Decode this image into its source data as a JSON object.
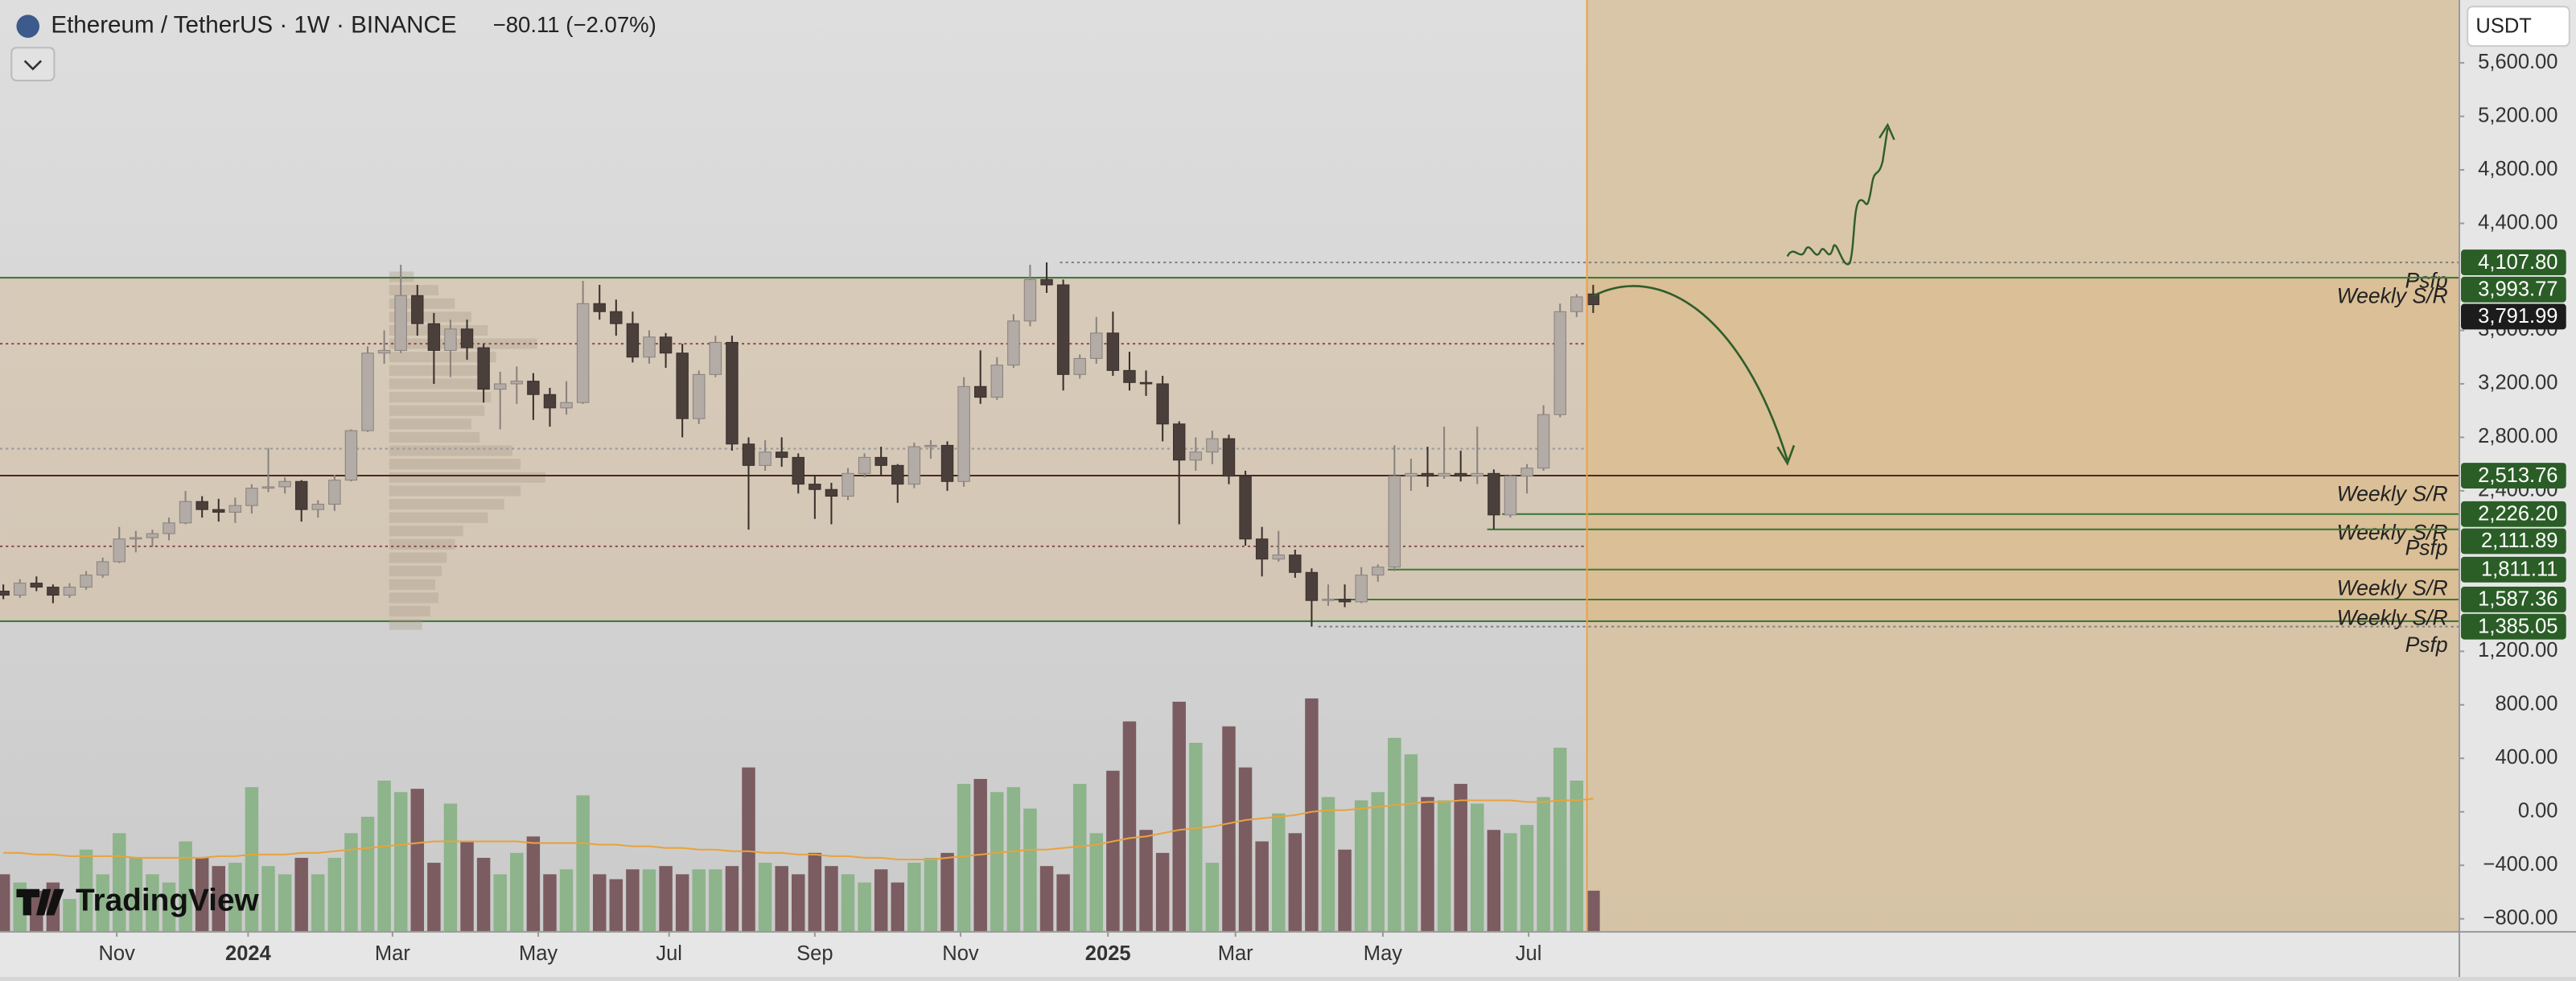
{
  "chart_data": {
    "type": "candlestick",
    "title": "Ethereum / TetherUS · 1W · BINANCE",
    "change": "−80.11 (−2.07%)",
    "currency_button": "USDT",
    "logo": "TradingView",
    "xlim": [
      -0.2,
      148.3
    ],
    "ylim": [
      -897,
      6070
    ],
    "xticks": [
      {
        "value": 6.85,
        "label": "Nov"
      },
      {
        "value": 14.78,
        "label": "2024"
      },
      {
        "value": 23.5,
        "label": "Mar"
      },
      {
        "value": 32.3,
        "label": "May"
      },
      {
        "value": 40.2,
        "label": "Jul"
      },
      {
        "value": 49.0,
        "label": "Sep"
      },
      {
        "value": 57.8,
        "label": "Nov"
      },
      {
        "value": 66.7,
        "label": "2025"
      },
      {
        "value": 74.4,
        "label": "Mar"
      },
      {
        "value": 83.3,
        "label": "May"
      },
      {
        "value": 92.1,
        "label": "Jul"
      }
    ],
    "yticks": [
      {
        "value": 5600,
        "label": "5,600.00"
      },
      {
        "value": 5200,
        "label": "5,200.00"
      },
      {
        "value": 4800,
        "label": "4,800.00"
      },
      {
        "value": 4400,
        "label": "4,400.00"
      },
      {
        "value": 3600,
        "label": "3,600.00"
      },
      {
        "value": 3200,
        "label": "3,200.00"
      },
      {
        "value": 2800,
        "label": "2,800.00"
      },
      {
        "value": 2400,
        "label": "2,400.00"
      },
      {
        "value": 1200,
        "label": "1,200.00"
      },
      {
        "value": 800,
        "label": "800.00"
      },
      {
        "value": 400,
        "label": "400.00"
      },
      {
        "value": 0,
        "label": "0.00"
      },
      {
        "value": -400,
        "label": "−400.00"
      },
      {
        "value": -800,
        "label": "−800.00"
      }
    ],
    "up_color": "#b3aba5",
    "down_color": "#4a3f3b",
    "ohlc": [
      [
        1650,
        1700,
        1590,
        1620
      ],
      [
        1620,
        1740,
        1600,
        1710
      ],
      [
        1710,
        1760,
        1650,
        1680
      ],
      [
        1680,
        1700,
        1560,
        1620
      ],
      [
        1620,
        1710,
        1600,
        1680
      ],
      [
        1680,
        1800,
        1660,
        1770
      ],
      [
        1770,
        1900,
        1750,
        1870
      ],
      [
        1870,
        2130,
        1860,
        2040
      ],
      [
        2040,
        2100,
        1940,
        2050
      ],
      [
        2050,
        2110,
        1980,
        2080
      ],
      [
        2080,
        2200,
        2030,
        2160
      ],
      [
        2160,
        2400,
        2150,
        2320
      ],
      [
        2320,
        2360,
        2200,
        2260
      ],
      [
        2260,
        2340,
        2170,
        2240
      ],
      [
        2240,
        2350,
        2160,
        2290
      ],
      [
        2290,
        2450,
        2230,
        2420
      ],
      [
        2420,
        2720,
        2390,
        2430
      ],
      [
        2430,
        2500,
        2380,
        2470
      ],
      [
        2470,
        2480,
        2170,
        2260
      ],
      [
        2260,
        2330,
        2200,
        2300
      ],
      [
        2300,
        2520,
        2250,
        2480
      ],
      [
        2480,
        2860,
        2470,
        2850
      ],
      [
        2850,
        3480,
        2840,
        3430
      ],
      [
        3430,
        3600,
        3350,
        3450
      ],
      [
        3450,
        4090,
        3430,
        3860
      ],
      [
        3860,
        3940,
        3560,
        3650
      ],
      [
        3650,
        3730,
        3200,
        3450
      ],
      [
        3450,
        3680,
        3250,
        3610
      ],
      [
        3610,
        3680,
        3380,
        3470
      ],
      [
        3470,
        3500,
        3060,
        3160
      ],
      [
        3160,
        3290,
        2860,
        3200
      ],
      [
        3200,
        3330,
        3050,
        3220
      ],
      [
        3220,
        3280,
        2930,
        3120
      ],
      [
        3120,
        3170,
        2880,
        3020
      ],
      [
        3020,
        3220,
        2970,
        3060
      ],
      [
        3060,
        3970,
        3050,
        3800
      ],
      [
        3800,
        3940,
        3680,
        3740
      ],
      [
        3740,
        3830,
        3560,
        3650
      ],
      [
        3650,
        3740,
        3360,
        3400
      ],
      [
        3400,
        3600,
        3350,
        3550
      ],
      [
        3550,
        3580,
        3320,
        3430
      ],
      [
        3430,
        3500,
        2800,
        2940
      ],
      [
        2940,
        3300,
        2900,
        3270
      ],
      [
        3270,
        3560,
        3250,
        3510
      ],
      [
        3510,
        3560,
        2700,
        2750
      ],
      [
        2750,
        2800,
        2110,
        2590
      ],
      [
        2590,
        2780,
        2550,
        2690
      ],
      [
        2690,
        2800,
        2580,
        2650
      ],
      [
        2650,
        2680,
        2380,
        2450
      ],
      [
        2450,
        2520,
        2190,
        2410
      ],
      [
        2410,
        2460,
        2150,
        2360
      ],
      [
        2360,
        2570,
        2330,
        2530
      ],
      [
        2530,
        2680,
        2500,
        2650
      ],
      [
        2650,
        2730,
        2520,
        2590
      ],
      [
        2590,
        2600,
        2310,
        2450
      ],
      [
        2450,
        2760,
        2420,
        2730
      ],
      [
        2730,
        2780,
        2640,
        2740
      ],
      [
        2740,
        2770,
        2400,
        2470
      ],
      [
        2470,
        3250,
        2430,
        3180
      ],
      [
        3180,
        3450,
        3050,
        3100
      ],
      [
        3100,
        3400,
        3080,
        3340
      ],
      [
        3340,
        3720,
        3320,
        3670
      ],
      [
        3670,
        4090,
        3630,
        3980
      ],
      [
        3980,
        4107.8,
        3880,
        3940
      ],
      [
        3940,
        3980,
        3150,
        3270
      ],
      [
        3270,
        3420,
        3240,
        3390
      ],
      [
        3390,
        3700,
        3350,
        3580
      ],
      [
        3580,
        3740,
        3260,
        3300
      ],
      [
        3300,
        3440,
        3150,
        3210
      ],
      [
        3210,
        3300,
        3110,
        3200
      ],
      [
        3200,
        3260,
        2770,
        2900
      ],
      [
        2900,
        2920,
        2150,
        2630
      ],
      [
        2630,
        2800,
        2550,
        2690
      ],
      [
        2690,
        2850,
        2600,
        2790
      ],
      [
        2790,
        2820,
        2450,
        2510
      ],
      [
        2510,
        2550,
        1990,
        2040
      ],
      [
        2040,
        2130,
        1760,
        1890
      ],
      [
        1890,
        2100,
        1870,
        1920
      ],
      [
        1920,
        1960,
        1750,
        1790
      ],
      [
        1790,
        1820,
        1385.05,
        1580
      ],
      [
        1580,
        1700,
        1540,
        1590
      ],
      [
        1590,
        1700,
        1530,
        1570
      ],
      [
        1570,
        1830,
        1560,
        1770
      ],
      [
        1770,
        1850,
        1720,
        1830
      ],
      [
        1830,
        2740,
        1800,
        2510
      ],
      [
        2510,
        2640,
        2400,
        2530
      ],
      [
        2530,
        2730,
        2430,
        2510
      ],
      [
        2510,
        2880,
        2490,
        2530
      ],
      [
        2530,
        2700,
        2470,
        2510
      ],
      [
        2510,
        2880,
        2450,
        2530
      ],
      [
        2530,
        2560,
        2111.89,
        2220
      ],
      [
        2220,
        2520,
        2200,
        2510
      ],
      [
        2510,
        2600,
        2380,
        2570
      ],
      [
        2570,
        3040,
        2550,
        2970
      ],
      [
        2970,
        3800,
        2950,
        3740
      ],
      [
        3740,
        3870,
        3700,
        3850
      ],
      [
        3872.1,
        3940,
        3730,
        3791.99
      ]
    ],
    "last_price_label": "3,791.99",
    "last_price_color": "#1c1c1c",
    "volume_ylim": [
      0,
      160
    ],
    "volume_up_color": "#8db48a",
    "volume_down_color": "#7b5c60",
    "volume": [
      35,
      30,
      25,
      30,
      20,
      50,
      35,
      60,
      45,
      35,
      30,
      55,
      45,
      40,
      42,
      88,
      40,
      35,
      45,
      35,
      45,
      60,
      70,
      92,
      85,
      87,
      42,
      78,
      55,
      45,
      35,
      48,
      58,
      35,
      38,
      83,
      35,
      32,
      38,
      38,
      40,
      35,
      38,
      38,
      40,
      100,
      42,
      40,
      35,
      48,
      40,
      35,
      30,
      38,
      30,
      42,
      45,
      48,
      90,
      93,
      85,
      88,
      75,
      40,
      35,
      90,
      60,
      98,
      128,
      62,
      48,
      140,
      115,
      42,
      125,
      100,
      55,
      72,
      60,
      142,
      82,
      50,
      80,
      85,
      118,
      108,
      82,
      80,
      90,
      78,
      62,
      60,
      65,
      82,
      112,
      92,
      25
    ],
    "volume_ma_color": "#e8a33c",
    "volume_ma": [
      48,
      48,
      47,
      47,
      46,
      46,
      46,
      46,
      45,
      45,
      45,
      45,
      45,
      46,
      46,
      47,
      47,
      47,
      48,
      48,
      49,
      50,
      51,
      52,
      53,
      54,
      55,
      55,
      55,
      55,
      55,
      55,
      54,
      54,
      54,
      54,
      53,
      53,
      52,
      52,
      51,
      51,
      50,
      50,
      49,
      49,
      48,
      48,
      47,
      47,
      46,
      46,
      45,
      45,
      44,
      44,
      44,
      45,
      46,
      47,
      48,
      49,
      50,
      50,
      51,
      52,
      53,
      55,
      57,
      58,
      60,
      62,
      63,
      64,
      66,
      68,
      69,
      70,
      71,
      73,
      74,
      74,
      75,
      76,
      77,
      78,
      79,
      79,
      80,
      80,
      80,
      80,
      79,
      79,
      80,
      80,
      81
    ],
    "volume_profile": {
      "from": 23.3,
      "xlim": [
        0,
        100
      ],
      "color": "#a89a88",
      "levels": [
        1400,
        1500,
        1600,
        1700,
        1800,
        1900,
        2000,
        2100,
        2200,
        2300,
        2400,
        2500,
        2600,
        2700,
        2800,
        2900,
        3000,
        3100,
        3200,
        3300,
        3400,
        3500,
        3600,
        3700,
        3800,
        3900,
        4000
      ],
      "values": [
        20,
        25,
        30,
        28,
        32,
        35,
        40,
        45,
        60,
        70,
        80,
        95,
        80,
        75,
        55,
        50,
        58,
        62,
        55,
        60,
        65,
        90,
        60,
        50,
        40,
        30,
        15
      ]
    },
    "zone": [
      1425,
      3993.77
    ],
    "zone_color": "#3f7a3a",
    "label_color": "#2b5e27",
    "guides": [
      {
        "value": 3500,
        "color": "#8b4a4a"
      },
      {
        "value": 2715,
        "color": "#9a9a9a"
      },
      {
        "value": 1985,
        "color": "#8b4a4a"
      }
    ],
    "levels": [
      {
        "value": 4107.8,
        "label": "4,107.80",
        "note": "Psfp",
        "color": "#7d7d7d",
        "dash": true,
        "from": 63.8
      },
      {
        "value": 3993.77,
        "label": "3,993.77",
        "note": "Weekly S/R",
        "color": "#3f7a3a",
        "dash": false,
        "from": -0.2
      },
      {
        "value": 2513.76,
        "label": "2,513.76",
        "note": "Weekly S/R",
        "color": "#4a2a22",
        "dash": false,
        "from": -0.2
      },
      {
        "value": 2226.2,
        "label": "2,226.20",
        "note": "Weekly S/R",
        "color": "#3f7a3a",
        "dash": false,
        "from": 90.5
      },
      {
        "value": 2111.89,
        "label": "2,111.89",
        "note": "Psfp",
        "color": "#3f7a3a",
        "dash": false,
        "from": 89.6
      },
      {
        "value": 1811.11,
        "label": "1,811.11",
        "note": "Weekly S/R",
        "color": "#3f7a3a",
        "dash": false,
        "from": 83.6
      },
      {
        "value": 1587.36,
        "label": "1,587.36",
        "note": "Weekly S/R",
        "color": "#3f7a3a",
        "dash": false,
        "from": 80.1
      },
      {
        "value": 1385.05,
        "label": "1,385.05",
        "note": "Psfp",
        "color": "#7d7d7d",
        "dash": true,
        "from": 79.4
      }
    ]
  }
}
